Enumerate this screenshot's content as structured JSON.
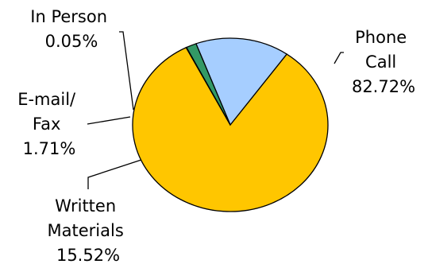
{
  "chart_data": {
    "type": "pie",
    "slices": [
      {
        "name": "Phone Call",
        "label_lines": [
          "Phone",
          "Call",
          "82.72%"
        ],
        "value": 82.72,
        "color": "#FFC600"
      },
      {
        "name": "Written Materials",
        "label_lines": [
          "Written",
          "Materials",
          "15.52%"
        ],
        "value": 15.52,
        "color": "#A6CEFF"
      },
      {
        "name": "E-mail/Fax",
        "label_lines": [
          "E-mail/",
          "Fax",
          "1.71%"
        ],
        "value": 1.71,
        "color": "#339966"
      },
      {
        "name": "In Person",
        "label_lines": [
          "In Person",
          "0.05%"
        ],
        "value": 0.05,
        "color": "#FFFFFF"
      }
    ],
    "legend": "none (labels beside slices with leader lines)"
  }
}
